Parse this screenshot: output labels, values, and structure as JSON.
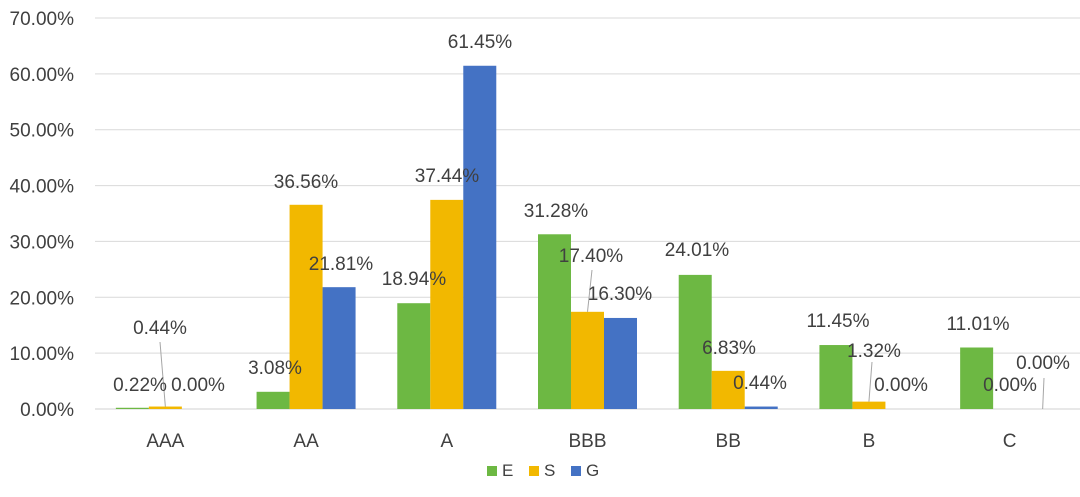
{
  "chart_data": {
    "type": "bar",
    "title": "",
    "xlabel": "",
    "ylabel": "",
    "categories": [
      "AAA",
      "AA",
      "A",
      "BBB",
      "BB",
      "B",
      "C"
    ],
    "ylim": [
      0,
      70
    ],
    "yticks": [
      "0.00%",
      "10.00%",
      "20.00%",
      "30.00%",
      "40.00%",
      "50.00%",
      "60.00%",
      "70.00%"
    ],
    "grid": true,
    "legend_position": "bottom",
    "series": [
      {
        "name": "E",
        "color": "#6DB843",
        "values": [
          0.22,
          3.08,
          18.94,
          31.28,
          24.01,
          11.45,
          11.01
        ],
        "labels": [
          "0.22%",
          "3.08%",
          "18.94%",
          "31.28%",
          "24.01%",
          "11.45%",
          "11.01%"
        ]
      },
      {
        "name": "S",
        "color": "#F2B800",
        "values": [
          0.44,
          36.56,
          37.44,
          17.4,
          6.83,
          1.32,
          0.0
        ],
        "labels": [
          "0.44%",
          "36.56%",
          "37.44%",
          "17.40%",
          "6.83%",
          "1.32%",
          "0.00%"
        ]
      },
      {
        "name": "G",
        "color": "#4472C4",
        "values": [
          0.0,
          21.81,
          61.45,
          16.3,
          0.44,
          0.0,
          0.0
        ],
        "labels": [
          "0.00%",
          "21.81%",
          "61.45%",
          "16.30%",
          "0.44%",
          "0.00%",
          "0.00%"
        ]
      }
    ]
  }
}
